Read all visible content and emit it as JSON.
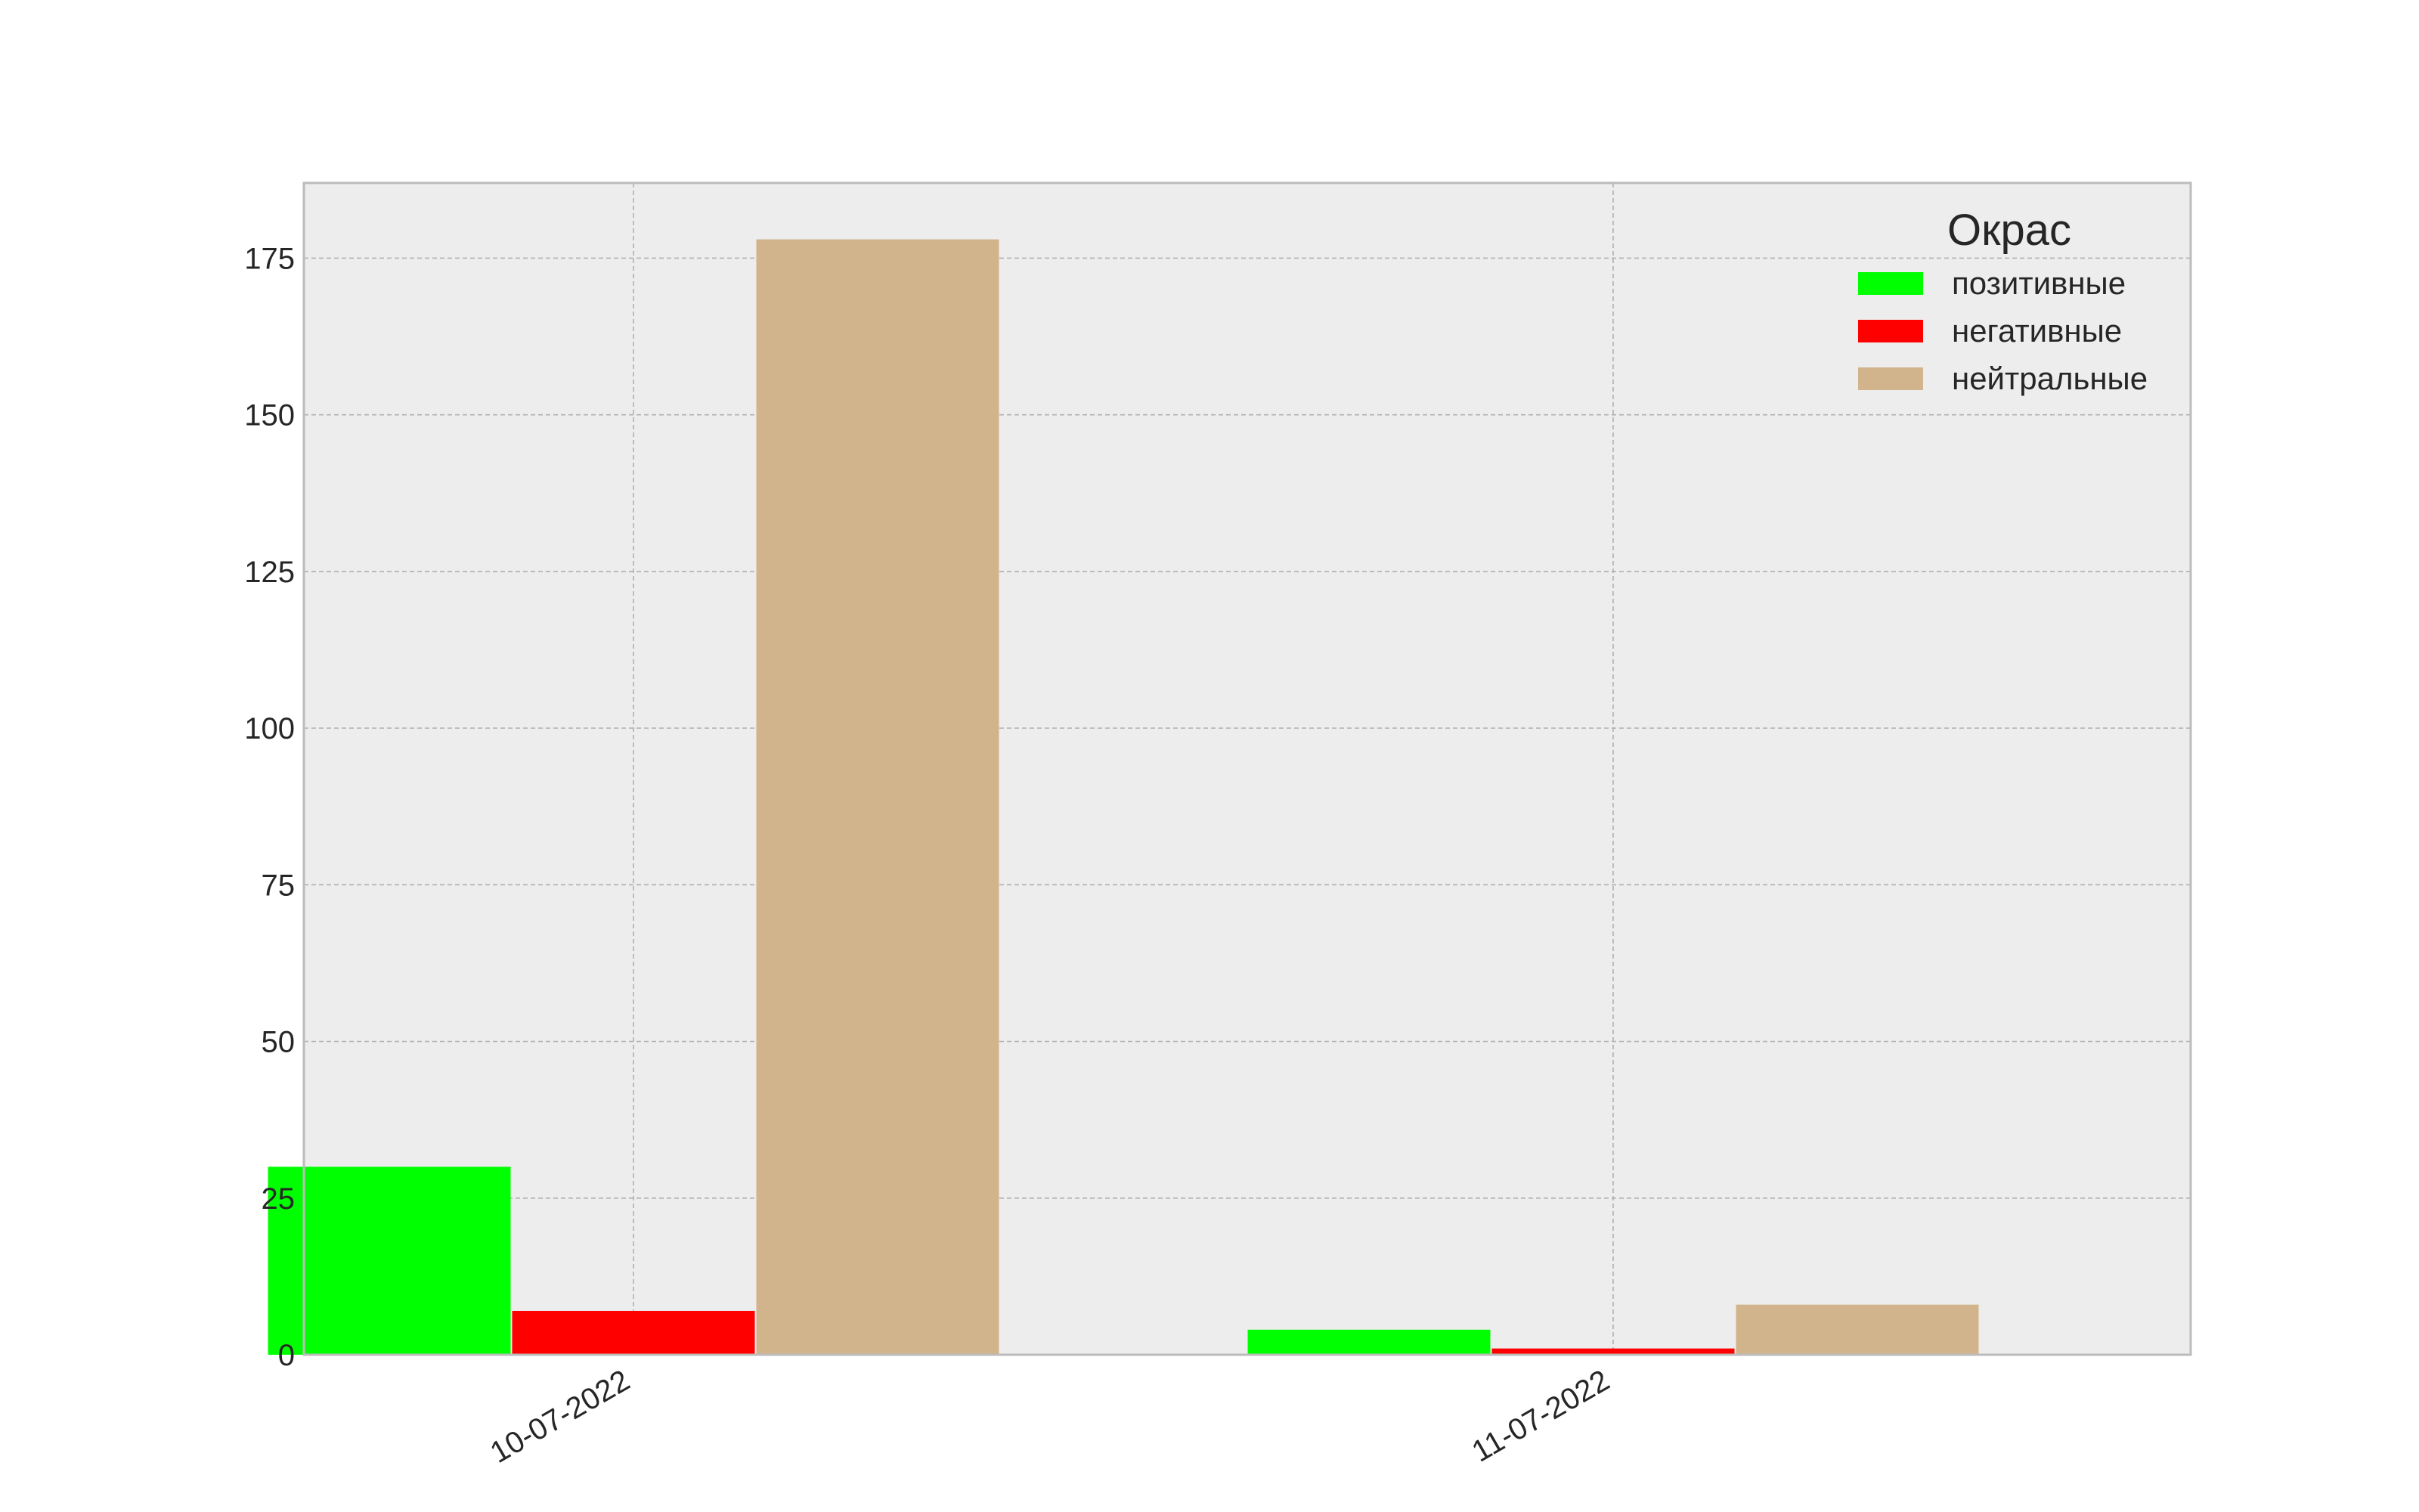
{
  "chart_data": {
    "type": "bar",
    "categories": [
      "10-07-2022",
      "11-07-2022"
    ],
    "series": [
      {
        "name": "позитивные",
        "values": [
          30,
          4
        ],
        "color": "#00ff00"
      },
      {
        "name": "негативные",
        "values": [
          7,
          1
        ],
        "color": "#ff0000"
      },
      {
        "name": "нейтральные",
        "values": [
          178,
          8
        ],
        "color": "#d2b48c"
      }
    ],
    "ylim": [
      0,
      187
    ],
    "yticks": [
      0,
      25,
      50,
      75,
      100,
      125,
      150,
      175
    ],
    "grid": true,
    "legend": {
      "title": "Окрас",
      "placement": "top-right"
    },
    "colors": {
      "plot_background": "#ededed",
      "grid": "#b0b0b0",
      "axes_edge": "#bcbcbc"
    }
  }
}
